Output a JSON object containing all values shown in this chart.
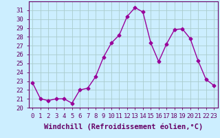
{
  "x": [
    0,
    1,
    2,
    3,
    4,
    5,
    6,
    7,
    8,
    9,
    10,
    11,
    12,
    13,
    14,
    15,
    16,
    17,
    18,
    19,
    20,
    21,
    22,
    23
  ],
  "y": [
    22.8,
    21.0,
    20.8,
    21.0,
    21.0,
    20.5,
    22.0,
    22.2,
    23.5,
    25.7,
    27.3,
    28.2,
    30.3,
    31.3,
    30.8,
    27.3,
    25.2,
    27.2,
    28.8,
    28.9,
    27.8,
    25.3,
    23.2,
    22.5
  ],
  "line_color": "#990099",
  "marker": "D",
  "marker_size": 2.5,
  "bg_color": "#cceeff",
  "grid_color": "#aacccc",
  "xlabel": "Windchill (Refroidissement éolien,°C)",
  "xlabel_fontsize": 7.5,
  "ylim": [
    20,
    32
  ],
  "xlim": [
    -0.5,
    23.5
  ],
  "yticks": [
    20,
    21,
    22,
    23,
    24,
    25,
    26,
    27,
    28,
    29,
    30,
    31
  ],
  "xticks": [
    0,
    1,
    2,
    3,
    4,
    5,
    6,
    7,
    8,
    9,
    10,
    11,
    12,
    13,
    14,
    15,
    16,
    17,
    18,
    19,
    20,
    21,
    22,
    23
  ],
  "tick_fontsize": 6.5,
  "spine_color": "#660066",
  "line_width": 1.0
}
